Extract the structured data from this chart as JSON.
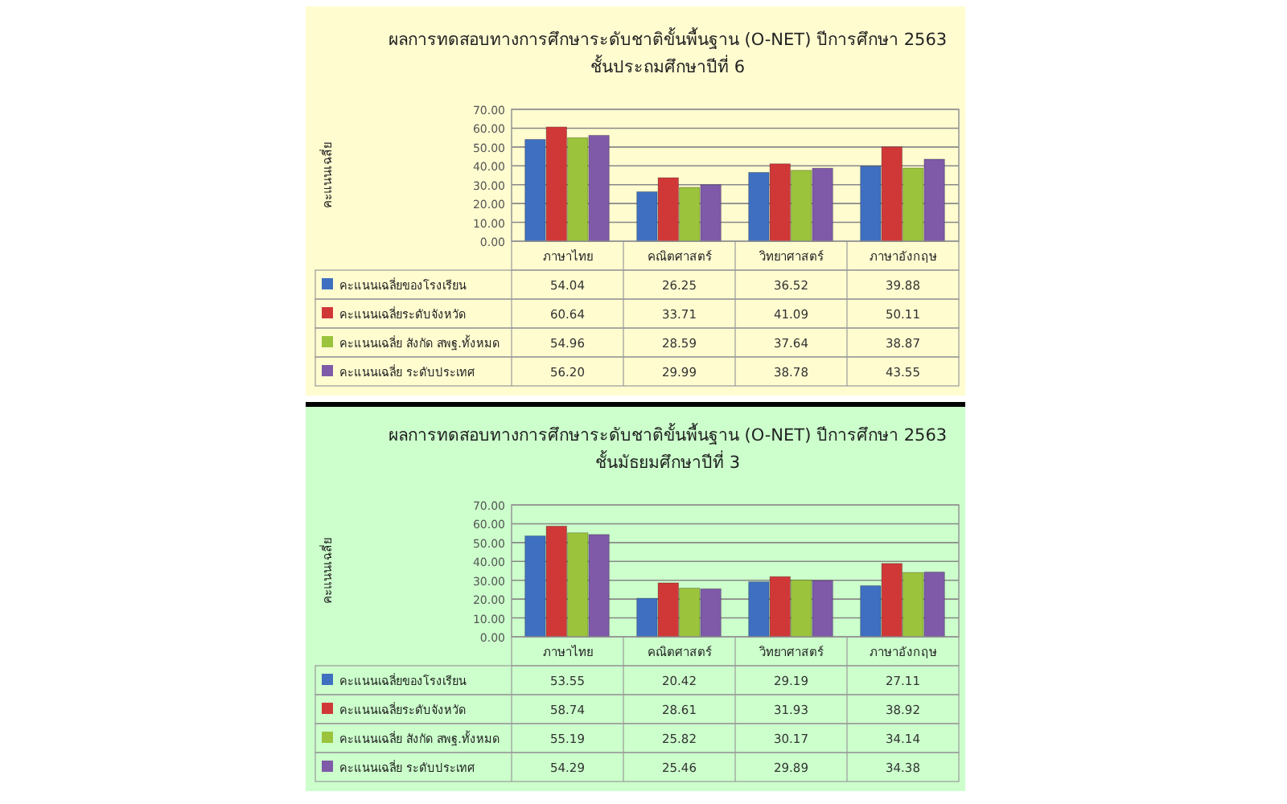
{
  "chart_data": [
    {
      "type": "bar",
      "title": "ผลการทดสอบทางการศึกษาระดับชาติขั้นพื้นฐาน (O-NET) ปีการศึกษา 2563",
      "subtitle": "ชั้นประถมศึกษาปีที่  6",
      "ylabel": "คะแนนเฉลี่ย",
      "categories": [
        "ภาษาไทย",
        "คณิตศาสตร์",
        "วิทยาศาสตร์",
        "ภาษาอังกฤษ"
      ],
      "series": [
        {
          "name": "คะแนนเฉลี่ยของโรงเรียน",
          "color": "#3f6fc0",
          "values": [
            54.04,
            26.25,
            36.52,
            39.88
          ],
          "value_labels": [
            "54.04",
            "26.25",
            "36.52",
            "39.88"
          ]
        },
        {
          "name": "คะแนนเฉลี่ยระดับจังหวัด",
          "color": "#d03838",
          "values": [
            60.64,
            33.71,
            41.09,
            50.11
          ],
          "value_labels": [
            "60.64",
            "33.71",
            "41.09",
            "50.11"
          ]
        },
        {
          "name": "คะแนนเฉลี่ย  สังกัด สพฐ.ทั้งหมด",
          "color": "#9bc33c",
          "values": [
            54.96,
            28.59,
            37.64,
            38.87
          ],
          "value_labels": [
            "54.96",
            "28.59",
            "37.64",
            "38.87"
          ]
        },
        {
          "name": "คะแนนเฉลี่ย  ระดับประเทศ",
          "color": "#7e5aa8",
          "values": [
            56.2,
            29.99,
            38.78,
            43.55
          ],
          "value_labels": [
            "56.20",
            "29.99",
            "38.78",
            "43.55"
          ]
        }
      ],
      "ylim": [
        0,
        70
      ],
      "yticks": [
        {
          "value": 0,
          "label": "0.00"
        },
        {
          "value": 10,
          "label": "10.00"
        },
        {
          "value": 20,
          "label": "20.00"
        },
        {
          "value": 30,
          "label": "30.00"
        },
        {
          "value": 40,
          "label": "40.00"
        },
        {
          "value": 50,
          "label": "50.00"
        },
        {
          "value": 60,
          "label": "60.00"
        },
        {
          "value": 70,
          "label": "70.00"
        }
      ],
      "grid": "y",
      "legend": "bottom"
    },
    {
      "type": "bar",
      "title": "ผลการทดสอบทางการศึกษาระดับชาติขั้นพื้นฐาน (O-NET) ปีการศึกษา 2563",
      "subtitle": "ชั้นมัธยมศึกษาปีที่  3",
      "ylabel": "คะแนนเฉลี่ย",
      "categories": [
        "ภาษาไทย",
        "คณิตศาสตร์",
        "วิทยาศาสตร์",
        "ภาษาอังกฤษ"
      ],
      "series": [
        {
          "name": "คะแนนเฉลี่ยของโรงเรียน",
          "color": "#3f6fc0",
          "values": [
            53.55,
            20.42,
            29.19,
            27.11
          ],
          "value_labels": [
            "53.55",
            "20.42",
            "29.19",
            "27.11"
          ]
        },
        {
          "name": "คะแนนเฉลี่ยระดับจังหวัด",
          "color": "#d03838",
          "values": [
            58.74,
            28.61,
            31.93,
            38.92
          ],
          "value_labels": [
            "58.74",
            "28.61",
            "31.93",
            "38.92"
          ]
        },
        {
          "name": "คะแนนเฉลี่ย  สังกัด สพฐ.ทั้งหมด",
          "color": "#9bc33c",
          "values": [
            55.19,
            25.82,
            30.17,
            34.14
          ],
          "value_labels": [
            "55.19",
            "25.82",
            "30.17",
            "34.14"
          ]
        },
        {
          "name": "คะแนนเฉลี่ย  ระดับประเทศ",
          "color": "#7e5aa8",
          "values": [
            54.29,
            25.46,
            29.89,
            34.38
          ],
          "value_labels": [
            "54.29",
            "25.46",
            "29.89",
            "34.38"
          ]
        }
      ],
      "ylim": [
        0,
        70
      ],
      "yticks": [
        {
          "value": 0,
          "label": "0.00"
        },
        {
          "value": 10,
          "label": "10.00"
        },
        {
          "value": 20,
          "label": "20.00"
        },
        {
          "value": 30,
          "label": "30.00"
        },
        {
          "value": 40,
          "label": "40.00"
        },
        {
          "value": 50,
          "label": "50.00"
        },
        {
          "value": 60,
          "label": "60.00"
        },
        {
          "value": 70,
          "label": "70.00"
        }
      ],
      "grid": "y",
      "legend": "bottom"
    }
  ]
}
